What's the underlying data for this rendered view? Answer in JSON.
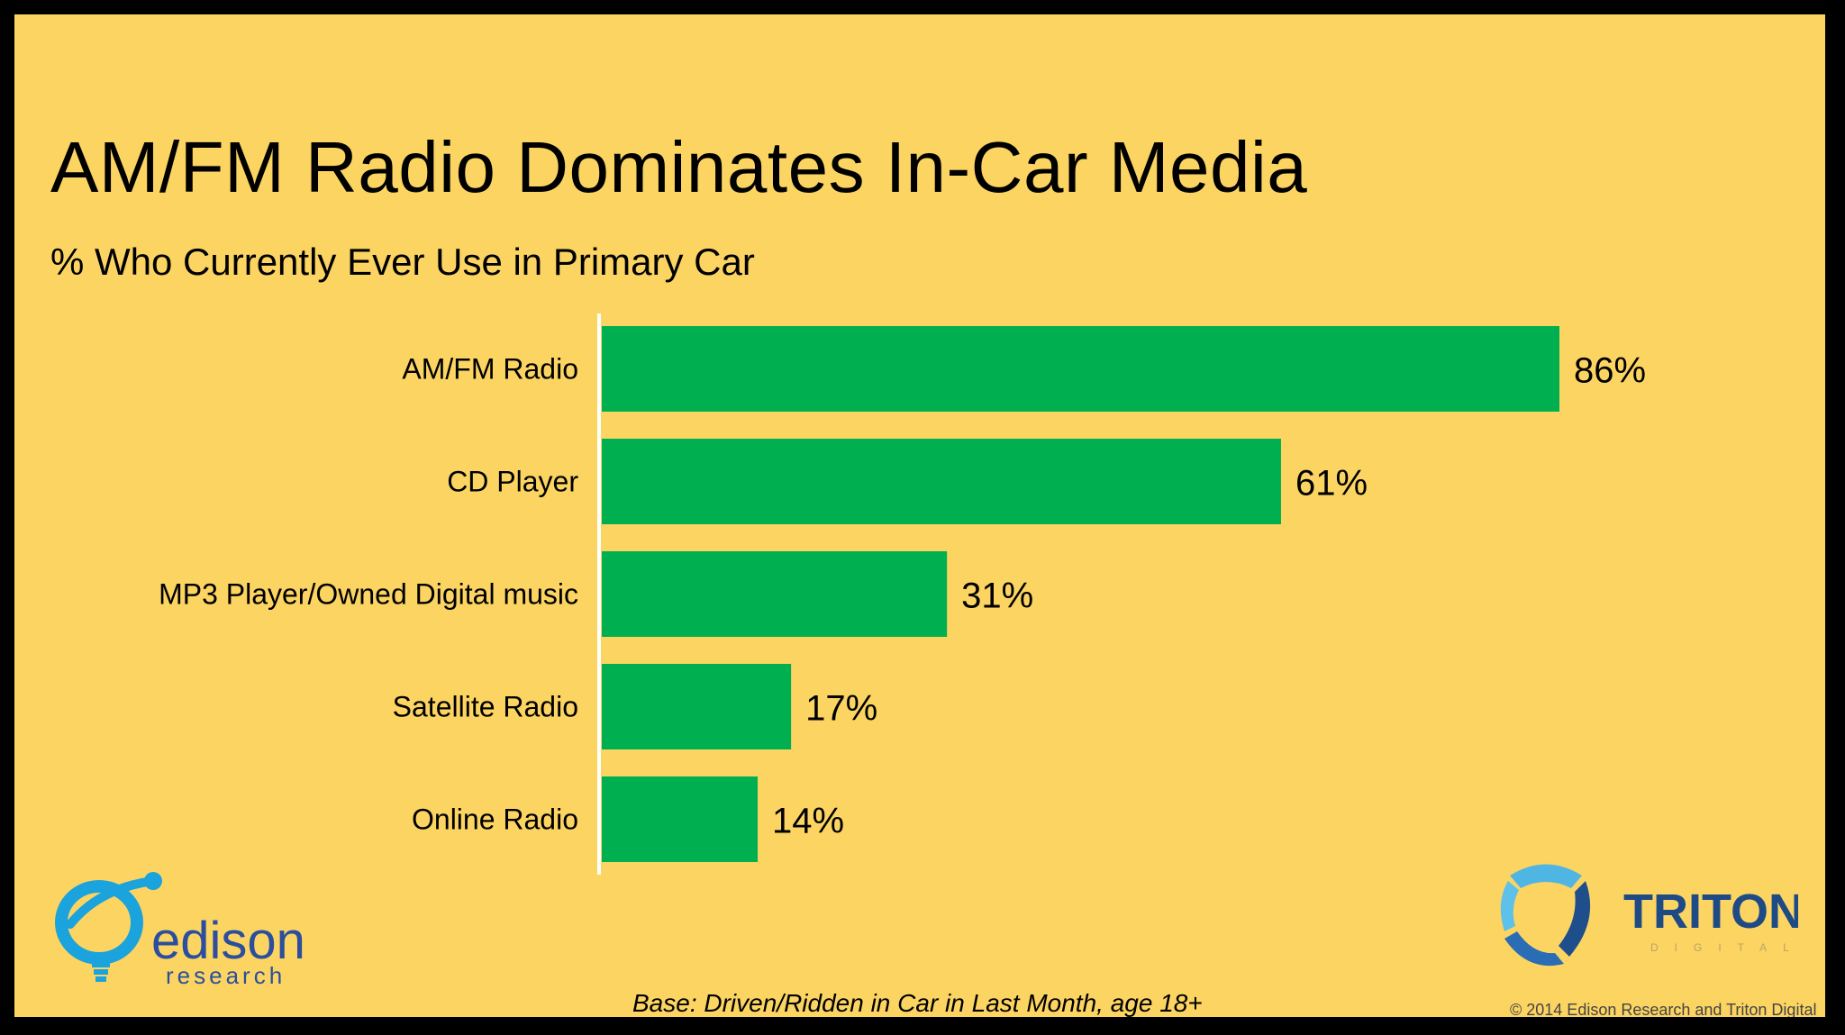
{
  "slide": {
    "title": "AM/FM Radio Dominates In-Car Media",
    "subtitle": "% Who Currently Ever Use in Primary Car",
    "base_note": "Base: Driven/Ridden in Car in Last Month, age 18+",
    "copyright": "© 2014 Edison Research and Triton Digital"
  },
  "logos": {
    "edison_word": "edison",
    "edison_sub": "research",
    "triton_word": "TRITON",
    "triton_sub": "DIGITAL"
  },
  "colors": {
    "background": "#FCD462",
    "bar": "#00B050",
    "axis": "#FFFFFF"
  },
  "chart_data": {
    "type": "bar",
    "orientation": "horizontal",
    "title": "AM/FM Radio Dominates In-Car Media",
    "subtitle": "% Who Currently Ever Use in Primary Car",
    "categories": [
      "AM/FM Radio",
      "CD Player",
      "MP3 Player/Owned Digital music",
      "Satellite Radio",
      "Online Radio"
    ],
    "values": [
      86,
      61,
      31,
      17,
      14
    ],
    "value_labels": [
      "86%",
      "61%",
      "31%",
      "17%",
      "14%"
    ],
    "xlabel": "",
    "ylabel": "",
    "xlim": [
      0,
      100
    ],
    "grid": false,
    "legend": "none"
  }
}
